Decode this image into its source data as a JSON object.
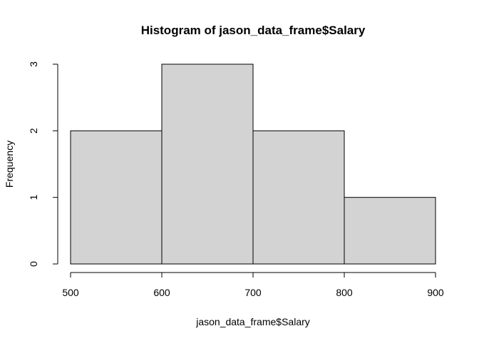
{
  "chart_data": {
    "type": "histogram",
    "title": "Histogram of jason_data_frame$Salary",
    "xlabel": "jason_data_frame$Salary",
    "ylabel": "Frequency",
    "bins": [
      {
        "start": 500,
        "end": 600,
        "count": 2
      },
      {
        "start": 600,
        "end": 700,
        "count": 3
      },
      {
        "start": 700,
        "end": 800,
        "count": 2
      },
      {
        "start": 800,
        "end": 900,
        "count": 1
      }
    ],
    "xlim": [
      500,
      900
    ],
    "ylim": [
      0,
      3
    ],
    "x_ticks": [
      500,
      600,
      700,
      800,
      900
    ],
    "y_ticks": [
      0,
      1,
      2,
      3
    ],
    "grid": false,
    "legend": "none",
    "bar_fill": "#d3d3d3",
    "bar_stroke": "#000000"
  }
}
